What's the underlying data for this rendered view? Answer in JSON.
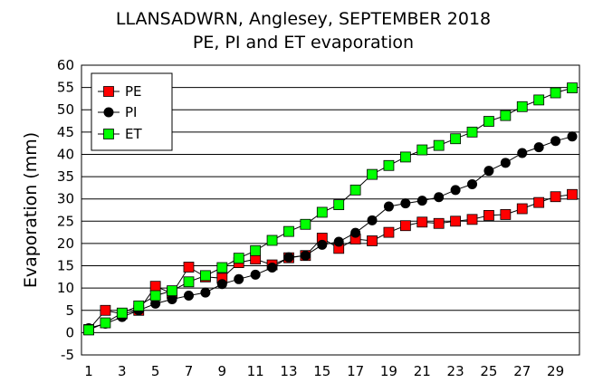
{
  "chart_data": {
    "type": "line",
    "title": "LLANSADWRN, Anglesey, SEPTEMBER 2018",
    "subtitle": "PE, PI and ET evaporation",
    "xlabel": "",
    "ylabel": "Evaporation (mm)",
    "xlim": [
      1,
      30
    ],
    "ylim": [
      -5,
      60
    ],
    "x_ticks": [
      "1",
      "3",
      "5",
      "7",
      "9",
      "11",
      "13",
      "15",
      "17",
      "19",
      "21",
      "23",
      "25",
      "27",
      "29"
    ],
    "y_ticks": [
      "60",
      "55",
      "50",
      "45",
      "40",
      "35",
      "30",
      "25",
      "20",
      "15",
      "10",
      "5",
      "0",
      "-5"
    ],
    "grid": "horizontal",
    "legend_position": "top-left",
    "x": [
      1,
      2,
      3,
      4,
      5,
      6,
      7,
      8,
      9,
      10,
      11,
      12,
      13,
      14,
      15,
      16,
      17,
      18,
      19,
      20,
      21,
      22,
      23,
      24,
      25,
      26,
      27,
      28,
      29,
      30
    ],
    "series": [
      {
        "name": "PE",
        "color": "#ff0000",
        "marker": "square",
        "values": [
          0.7,
          5.0,
          4.2,
          5.0,
          10.4,
          8.8,
          14.7,
          12.5,
          12.2,
          15.7,
          16.5,
          15.2,
          16.8,
          17.3,
          21.2,
          18.9,
          21.0,
          20.6,
          22.5,
          24.0,
          24.8,
          24.5,
          25.0,
          25.4,
          26.3,
          26.5,
          27.8,
          29.2,
          30.5,
          31.0
        ]
      },
      {
        "name": "PI",
        "color": "#000000",
        "marker": "circle",
        "values": [
          1.0,
          2.0,
          3.5,
          5.0,
          6.5,
          7.5,
          8.3,
          9.0,
          10.9,
          12.0,
          13.0,
          14.6,
          16.9,
          17.3,
          19.7,
          20.4,
          22.4,
          25.2,
          28.3,
          29.0,
          29.6,
          30.4,
          32.0,
          33.3,
          36.3,
          38.1,
          40.3,
          41.6,
          43.0,
          44.0
        ]
      },
      {
        "name": "ET",
        "color": "#00ff00",
        "marker": "square",
        "values": [
          0.6,
          2.2,
          4.4,
          6.0,
          8.3,
          9.4,
          11.4,
          12.8,
          14.6,
          16.7,
          18.4,
          20.7,
          22.7,
          24.3,
          27.0,
          28.7,
          32.0,
          35.5,
          37.5,
          39.4,
          41.0,
          42.0,
          43.5,
          45.0,
          47.4,
          48.7,
          50.7,
          52.2,
          53.8,
          54.9
        ]
      }
    ]
  }
}
